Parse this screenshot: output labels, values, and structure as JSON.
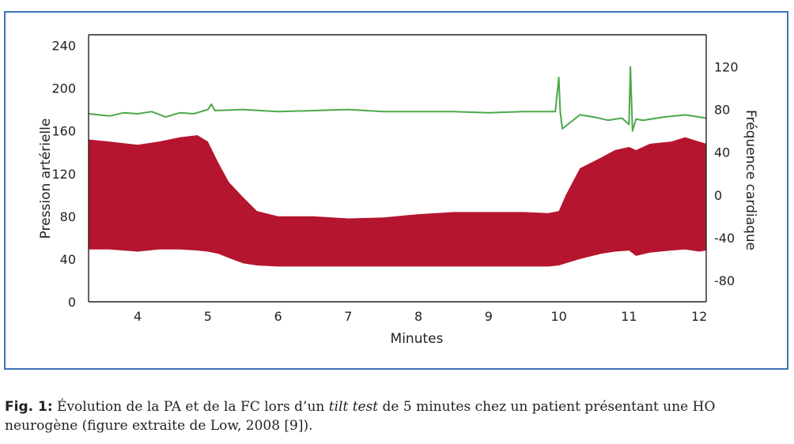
{
  "chart_data": {
    "type": "area",
    "xlabel": "Minutes",
    "ylabel_left": "Pression artérielle",
    "ylabel_right": "Fréquence cardiaque",
    "xlim": [
      3.3,
      12.1
    ],
    "ylim_left": [
      0,
      250
    ],
    "ylim_right": [
      -100,
      150
    ],
    "x_ticks": [
      4,
      5,
      6,
      7,
      8,
      9,
      10,
      11,
      12
    ],
    "y_ticks_left": [
      0,
      40,
      80,
      120,
      160,
      200,
      240
    ],
    "y_ticks_right": [
      -80,
      -40,
      0,
      40,
      80,
      120
    ],
    "colors": {
      "pressure": "#b5152e",
      "heart_rate": "#4ca84a",
      "frame": "#3f73b6"
    },
    "series": [
      {
        "name": "",
        "kind": "band",
        "x": [
          3.3,
          3.6,
          4.0,
          4.3,
          4.6,
          4.85,
          5.0,
          5.15,
          5.3,
          5.5,
          5.7,
          6.0,
          6.5,
          7.0,
          7.5,
          8.0,
          8.5,
          9.0,
          9.5,
          9.85,
          10.0,
          10.1,
          10.3,
          10.6,
          10.8,
          11.0,
          11.1,
          11.3,
          11.6,
          11.8,
          12.0,
          12.1
        ],
        "upper": [
          152,
          150,
          147,
          150,
          154,
          156,
          150,
          130,
          112,
          98,
          85,
          80,
          80,
          78,
          79,
          82,
          84,
          84,
          84,
          83,
          85,
          100,
          125,
          135,
          142,
          145,
          142,
          148,
          150,
          154,
          150,
          148
        ],
        "lower": [
          49,
          49,
          47,
          49,
          49,
          48,
          47,
          45,
          41,
          36,
          34,
          33,
          33,
          33,
          33,
          33,
          33,
          33,
          33,
          33,
          34,
          36,
          40,
          45,
          47,
          48,
          43,
          46,
          48,
          49,
          47,
          48
        ]
      },
      {
        "name": "",
        "kind": "line",
        "x": [
          3.3,
          3.6,
          3.8,
          4.0,
          4.2,
          4.4,
          4.6,
          4.8,
          5.0,
          5.05,
          5.1,
          5.5,
          6.0,
          6.5,
          7.0,
          7.5,
          8.0,
          8.5,
          9.0,
          9.5,
          9.95,
          10.0,
          10.02,
          10.05,
          10.3,
          10.5,
          10.7,
          10.9,
          11.0,
          11.02,
          11.05,
          11.1,
          11.2,
          11.5,
          11.8,
          12.1
        ],
        "values": [
          76,
          74,
          77,
          76,
          78,
          73,
          77,
          76,
          80,
          85,
          79,
          80,
          78,
          79,
          80,
          78,
          78,
          78,
          77,
          78,
          78,
          110,
          78,
          62,
          75,
          73,
          70,
          72,
          66,
          120,
          60,
          71,
          70,
          73,
          75,
          72
        ]
      }
    ]
  },
  "caption": {
    "label": "Fig. 1:",
    "text_before": " Évolution de la PA et de la FC lors d’un ",
    "emphasis": "tilt test",
    "text_after": " de 5 minutes chez un patient présentant une HO",
    "line2": "neurogène (figure extraite de Low, 2008 [9])."
  }
}
